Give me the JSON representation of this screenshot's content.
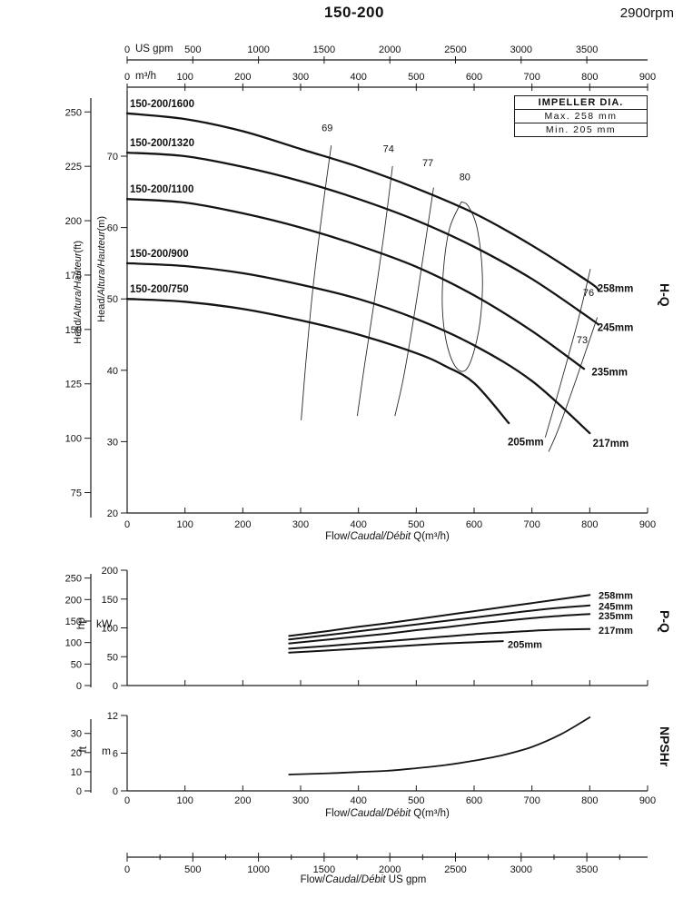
{
  "header": {
    "model": "150-200",
    "speed": "2900rpm"
  },
  "impeller_box": {
    "title": "IMPELLER DIA.",
    "max": "Max. 258 mm",
    "min": "Min. 205 mm"
  },
  "labels": {
    "flow_prefix": "Flow/",
    "flow_italic": "Caudal/Débit",
    "flow_suffix_m3h": " Q(m³/h)",
    "flow_suffix_gpm": "  US gpm",
    "head_prefix": "Head/",
    "head_italic": "Altura/Hauteur",
    "head_suffix_ft": "(ft)",
    "head_suffix_m": "(m)"
  },
  "gpm_axis": {
    "unit": "US gpm",
    "ticks": [
      0,
      500,
      1000,
      1500,
      2000,
      2500,
      3000,
      3500
    ],
    "minor_ticks": [
      250,
      750,
      1250,
      1750,
      2250,
      2750,
      3250,
      3750
    ]
  },
  "chart_data": [
    {
      "id": "hq",
      "type": "line",
      "name": "H-Q",
      "xlabel": "Flow/Caudal/Débit Q(m³/h)",
      "x_unit": "m³/h",
      "xlim": [
        0,
        900
      ],
      "x_ticks": [
        0,
        100,
        200,
        300,
        400,
        500,
        600,
        700,
        800,
        900
      ],
      "y_unit_inner": "m",
      "ylim_m": [
        20,
        79
      ],
      "y_ticks_m": [
        20,
        30,
        40,
        50,
        60,
        70
      ],
      "y_unit_outer": "ft",
      "y_ticks_ft": [
        75,
        100,
        125,
        150,
        175,
        200,
        225,
        250
      ],
      "series": [
        {
          "name": "150-200/1600",
          "impeller": "258mm",
          "x": [
            0,
            100,
            200,
            300,
            400,
            500,
            600,
            700,
            800,
            815
          ],
          "y": [
            76,
            75.2,
            73.5,
            71,
            68.5,
            65.5,
            62,
            57.5,
            52.3,
            51.2
          ],
          "end_label_at": [
            810,
            51.5
          ]
        },
        {
          "name": "150-200/1320",
          "impeller": "245mm",
          "x": [
            0,
            100,
            200,
            300,
            400,
            500,
            600,
            700,
            800,
            815
          ],
          "y": [
            70.5,
            70,
            68.5,
            66.5,
            64,
            61,
            57.3,
            52.8,
            47.3,
            46.4
          ],
          "end_label_at": [
            810,
            46
          ]
        },
        {
          "name": "150-200/1100",
          "impeller": "235mm",
          "x": [
            0,
            100,
            200,
            300,
            400,
            500,
            600,
            700,
            790
          ],
          "y": [
            64,
            63.5,
            62,
            60,
            57.5,
            54.5,
            50.5,
            45.5,
            40.2
          ],
          "end_label_at": [
            800,
            39.8
          ]
        },
        {
          "name": "150-200/900",
          "impeller": "217mm",
          "x": [
            0,
            100,
            200,
            300,
            400,
            500,
            600,
            700,
            800
          ],
          "y": [
            55,
            54.6,
            53.6,
            52,
            50,
            47.2,
            43.5,
            38.5,
            31.2
          ],
          "end_label_at": [
            802,
            29.8
          ]
        },
        {
          "name": "150-200/750",
          "impeller": "205mm",
          "x": [
            0,
            100,
            200,
            300,
            400,
            500,
            550,
            600,
            660
          ],
          "y": [
            50,
            49.6,
            48.6,
            47,
            45,
            42.4,
            40.6,
            38.2,
            32.6
          ],
          "end_label_at": [
            655,
            30
          ]
        }
      ],
      "efficiency_contours": [
        {
          "label": "69",
          "label_at": [
            346,
            73.5
          ],
          "points": [
            [
              353,
              71.5
            ],
            [
              337,
              62
            ],
            [
              322,
              52
            ],
            [
              310,
              42
            ],
            [
              301,
              33
            ]
          ]
        },
        {
          "label": "74",
          "label_at": [
            452,
            70.6
          ],
          "points": [
            [
              459,
              68.6
            ],
            [
              444,
              59
            ],
            [
              428,
              50
            ],
            [
              411,
              41
            ],
            [
              398,
              33.6
            ]
          ]
        },
        {
          "label": "77",
          "label_at": [
            520,
            68.6
          ],
          "points": [
            [
              530,
              65.6
            ],
            [
              514,
              57
            ],
            [
              497,
              48
            ],
            [
              478,
              39
            ],
            [
              463,
              33.6
            ]
          ]
        },
        {
          "label": "80",
          "label_at": [
            584,
            66.6
          ],
          "points": [
            [
              578,
              63.6
            ],
            [
              558,
              60
            ],
            [
              548,
              55
            ],
            [
              545,
              49
            ],
            [
              552,
              44
            ],
            [
              567,
              40.6
            ],
            [
              585,
              40
            ],
            [
              601,
              43
            ],
            [
              612,
              48
            ],
            [
              614,
              54
            ],
            [
              605,
              60
            ],
            [
              590,
              63
            ],
            [
              578,
              63.6
            ]
          ]
        },
        {
          "label": "76",
          "label_at": [
            798,
            50.4
          ],
          "points": [
            [
              801,
              54.2
            ],
            [
              783,
              48
            ],
            [
              763,
              42
            ],
            [
              741,
              35.6
            ],
            [
              723,
              30.6
            ]
          ]
        },
        {
          "label": "73",
          "label_at": [
            787,
            43.8
          ],
          "points": [
            [
              813,
              47.4
            ],
            [
              792,
              42.4
            ],
            [
              769,
              37
            ],
            [
              745,
              31.6
            ],
            [
              729,
              28.6
            ]
          ]
        }
      ]
    },
    {
      "id": "pq",
      "type": "line",
      "name": "P-Q",
      "y_unit_inner": "kW",
      "y_ticks_kw": [
        0,
        50,
        100,
        150,
        200
      ],
      "y_unit_outer": "hp",
      "y_ticks_hp": [
        0,
        50,
        100,
        150,
        200,
        250
      ],
      "x_ticks": [
        0,
        100,
        200,
        300,
        400,
        500,
        600,
        700,
        800,
        900
      ],
      "series": [
        {
          "impeller": "258mm",
          "x": [
            280,
            350,
            400,
            450,
            500,
            550,
            600,
            650,
            700,
            750,
            800
          ],
          "y": [
            86,
            95,
            102,
            108,
            115,
            122,
            129,
            136,
            143,
            150,
            157
          ],
          "end_label_at": [
            812,
            157
          ]
        },
        {
          "impeller": "245mm",
          "x": [
            280,
            350,
            400,
            450,
            500,
            550,
            600,
            650,
            700,
            750,
            800
          ],
          "y": [
            80,
            88,
            94,
            100,
            106,
            112,
            118,
            124,
            130,
            135,
            139
          ],
          "end_label_at": [
            812,
            138
          ]
        },
        {
          "impeller": "235mm",
          "x": [
            280,
            350,
            400,
            450,
            500,
            550,
            600,
            650,
            700,
            750,
            800
          ],
          "y": [
            73,
            80,
            85,
            90,
            96,
            101,
            107,
            112,
            117,
            121,
            124
          ],
          "end_label_at": [
            812,
            121
          ]
        },
        {
          "impeller": "217mm",
          "x": [
            280,
            350,
            400,
            450,
            500,
            550,
            600,
            650,
            700,
            750,
            800
          ],
          "y": [
            64,
            69,
            73,
            77,
            81,
            85,
            89,
            92,
            95,
            97,
            98
          ],
          "end_label_at": [
            812,
            96
          ]
        },
        {
          "impeller": "205mm",
          "x": [
            280,
            350,
            400,
            450,
            500,
            550,
            600,
            650
          ],
          "y": [
            57,
            61,
            64,
            67,
            70,
            73,
            75,
            77
          ],
          "end_label_at": [
            655,
            72
          ]
        }
      ]
    },
    {
      "id": "npsh",
      "type": "line",
      "name": "NPSHr",
      "xlabel": "Flow/Caudal/Débit Q(m³/h)",
      "y_unit_inner": "m",
      "y_ticks_m": [
        0,
        6,
        12
      ],
      "y_unit_outer": "ft",
      "y_ticks_ft": [
        0,
        10,
        20,
        30
      ],
      "x_ticks": [
        0,
        100,
        200,
        300,
        400,
        500,
        600,
        700,
        800,
        900
      ],
      "series": [
        {
          "name": "NPSHr",
          "x": [
            280,
            350,
            400,
            450,
            500,
            550,
            600,
            650,
            700,
            750,
            800
          ],
          "y": [
            2.6,
            2.8,
            3.0,
            3.2,
            3.6,
            4.1,
            4.8,
            5.7,
            7.0,
            9.0,
            11.7
          ]
        }
      ]
    }
  ]
}
